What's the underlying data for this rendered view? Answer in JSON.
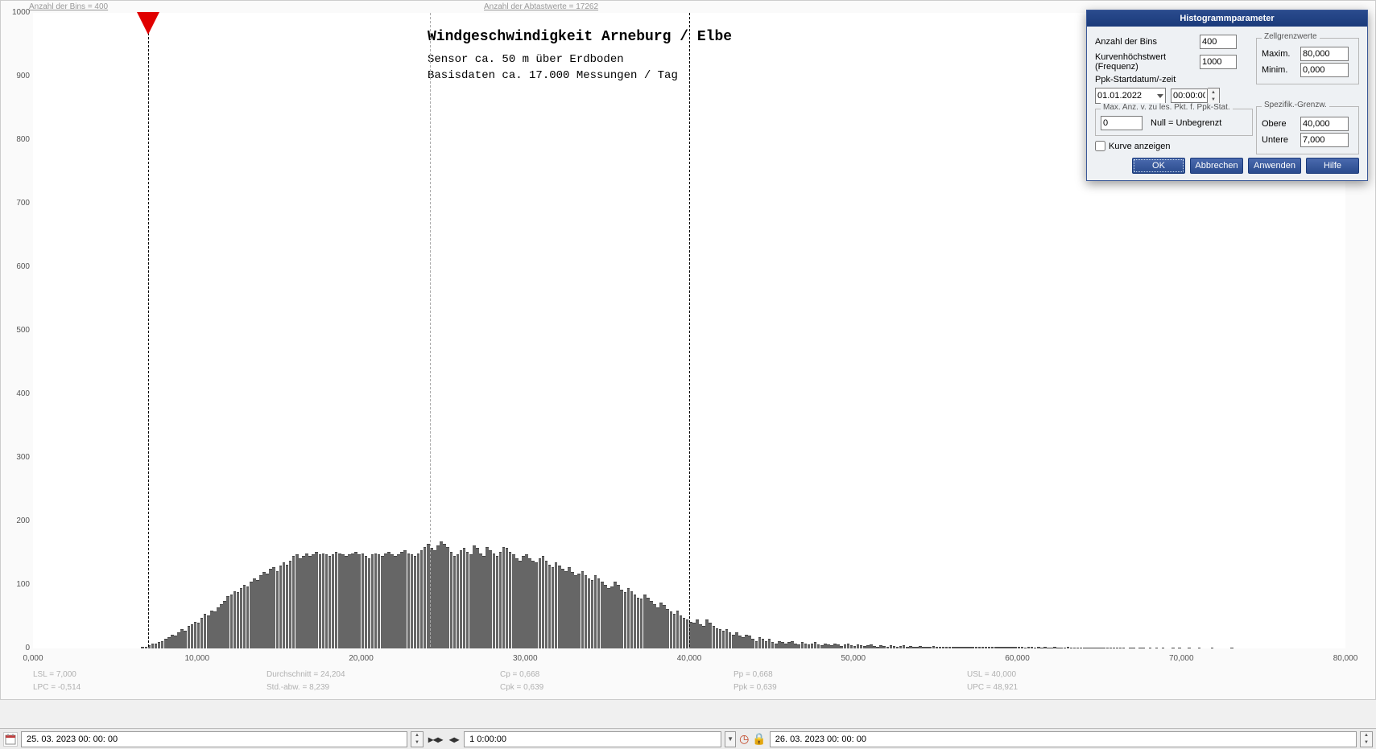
{
  "header": {
    "bins_label": "Anzahl der Bins =   400",
    "samples_label": "Anzahl der Abtastwerte = 17262"
  },
  "chart": {
    "type": "histogram",
    "title": "Windgeschwindigkeit  Arneburg / Elbe",
    "subtitle1": "Sensor ca. 50 m über Erdboden",
    "subtitle2": "Basisdaten ca. 17.000 Messungen / Tag",
    "title_fontsize": 18,
    "subtitle_fontsize": 14,
    "font_family": "Courier New",
    "background_color": "#ffffff",
    "bar_color": "#666666",
    "xlim": [
      0,
      80
    ],
    "ylim": [
      0,
      1000
    ],
    "x_ticks": [
      "0,000",
      "10,000",
      "20,000",
      "30,000",
      "40,000",
      "50,000",
      "60,000",
      "70,000",
      "80,000"
    ],
    "y_ticks": [
      "0",
      "100",
      "200",
      "300",
      "400",
      "500",
      "600",
      "700",
      "800",
      "900",
      "1000"
    ],
    "x_tick_values": [
      0,
      10,
      20,
      30,
      40,
      50,
      60,
      70,
      80
    ],
    "y_tick_values": [
      0,
      100,
      200,
      300,
      400,
      500,
      600,
      700,
      800,
      900,
      1000
    ],
    "lsl_x": 7.0,
    "usl_x": 40.0,
    "mean_x": 24.204,
    "bin_width": 0.2,
    "values": [
      0,
      0,
      0,
      0,
      0,
      0,
      0,
      0,
      0,
      0,
      0,
      0,
      0,
      0,
      0,
      0,
      0,
      0,
      0,
      0,
      0,
      0,
      0,
      0,
      0,
      0,
      0,
      0,
      0,
      0,
      0,
      0,
      0,
      2,
      3,
      5,
      8,
      7,
      10,
      12,
      15,
      18,
      22,
      20,
      25,
      30,
      28,
      35,
      38,
      42,
      40,
      48,
      55,
      52,
      60,
      58,
      65,
      70,
      75,
      82,
      85,
      90,
      88,
      95,
      100,
      98,
      105,
      110,
      108,
      115,
      120,
      118,
      125,
      128,
      122,
      130,
      135,
      132,
      138,
      145,
      148,
      142,
      145,
      150,
      145,
      148,
      152,
      148,
      150,
      148,
      145,
      148,
      152,
      150,
      148,
      145,
      148,
      150,
      152,
      148,
      150,
      145,
      142,
      148,
      150,
      148,
      145,
      150,
      152,
      148,
      145,
      148,
      152,
      155,
      150,
      148,
      145,
      150,
      155,
      160,
      165,
      158,
      155,
      162,
      168,
      165,
      160,
      152,
      145,
      148,
      155,
      158,
      152,
      148,
      162,
      158,
      150,
      145,
      160,
      155,
      150,
      145,
      152,
      160,
      158,
      152,
      148,
      142,
      138,
      145,
      148,
      142,
      138,
      135,
      142,
      145,
      138,
      132,
      128,
      135,
      130,
      125,
      122,
      128,
      120,
      115,
      118,
      122,
      115,
      110,
      108,
      115,
      110,
      105,
      100,
      95,
      98,
      105,
      100,
      92,
      88,
      95,
      90,
      85,
      80,
      78,
      85,
      80,
      75,
      70,
      65,
      72,
      68,
      62,
      58,
      55,
      60,
      52,
      48,
      45,
      42,
      40,
      45,
      38,
      35,
      45,
      40,
      35,
      32,
      30,
      28,
      30,
      25,
      22,
      25,
      20,
      18,
      22,
      20,
      15,
      12,
      18,
      15,
      12,
      15,
      10,
      8,
      12,
      10,
      8,
      10,
      12,
      8,
      6,
      10,
      8,
      6,
      8,
      10,
      6,
      5,
      8,
      6,
      5,
      8,
      6,
      4,
      6,
      8,
      5,
      4,
      6,
      5,
      4,
      5,
      6,
      4,
      3,
      5,
      4,
      3,
      5,
      4,
      3,
      4,
      5,
      3,
      4,
      3,
      2,
      4,
      3,
      2,
      3,
      4,
      3,
      2,
      3,
      2,
      3,
      2,
      3,
      2,
      2,
      3,
      2,
      2,
      3,
      2,
      2,
      2,
      3,
      2,
      2,
      2,
      2,
      2,
      2,
      2,
      2,
      2,
      2,
      1,
      2,
      2,
      1,
      2,
      1,
      2,
      1,
      1,
      2,
      1,
      1,
      1,
      2,
      1,
      1,
      1,
      1,
      1,
      1,
      1,
      1,
      1,
      1,
      1,
      1,
      1,
      1,
      1,
      1,
      1,
      0,
      1,
      1,
      0,
      1,
      1,
      0,
      1,
      0,
      1,
      0,
      1,
      0,
      0,
      1,
      0,
      1,
      0,
      0,
      1,
      0,
      0,
      1,
      0,
      0,
      0,
      1,
      0,
      0,
      0,
      0,
      0,
      1,
      0,
      0,
      0,
      0,
      0,
      0,
      0,
      0,
      0,
      0,
      0,
      0,
      0,
      0,
      0,
      0,
      0,
      0,
      0,
      0,
      0,
      0,
      0,
      0,
      0,
      0,
      0,
      0,
      0,
      0,
      0,
      0,
      0,
      0
    ]
  },
  "stats": {
    "lsl": "LSL = 7,000",
    "durchschnitt": "Durchschnitt = 24,204",
    "cp": "Cp = 0,668",
    "pp": "Pp = 0,668",
    "usl": "USL = 40,000",
    "lpc": "LPC = -0,514",
    "stdabw": "Std.-abw. = 8,239",
    "cpk": "Cpk = 0,639",
    "ppk": "Ppk = 0,639",
    "upc": "UPC = 48,921"
  },
  "dialog": {
    "title": "Histogrammparameter",
    "bins_label": "Anzahl der Bins",
    "bins_value": "400",
    "kurven_label": "Kurvenhöchstwert (Frequenz)",
    "kurven_value": "1000",
    "ppk_label": "Ppk-Startdatum/-zeit",
    "date_value": "01.01.2022",
    "time_value": "00:00:00",
    "max_anz_legend": "Max. Anz. v. zu les. Pkt. f. Ppk-Stat.",
    "max_anz_value": "0",
    "max_anz_hint": "Null = Unbegrenzt",
    "kurve_anzeigen": "Kurve anzeigen",
    "zell_legend": "Zellgrenzwerte",
    "zell_max_label": "Maxim.",
    "zell_max_value": "80,000",
    "zell_min_label": "Minim.",
    "zell_min_value": "0,000",
    "spez_legend": "Spezifik.-Grenzw.",
    "spez_obere_label": "Obere",
    "spez_obere_value": "40,000",
    "spez_untere_label": "Untere",
    "spez_untere_value": "7,000",
    "btn_ok": "OK",
    "btn_abbrechen": "Abbrechen",
    "btn_anwenden": "Anwenden",
    "btn_hilfe": "Hilfe"
  },
  "bottombar": {
    "start_datetime": "25. 03. 2023   00: 00: 00",
    "span": "1 0:00:00",
    "end_datetime": "26. 03. 2023   00: 00: 00"
  }
}
